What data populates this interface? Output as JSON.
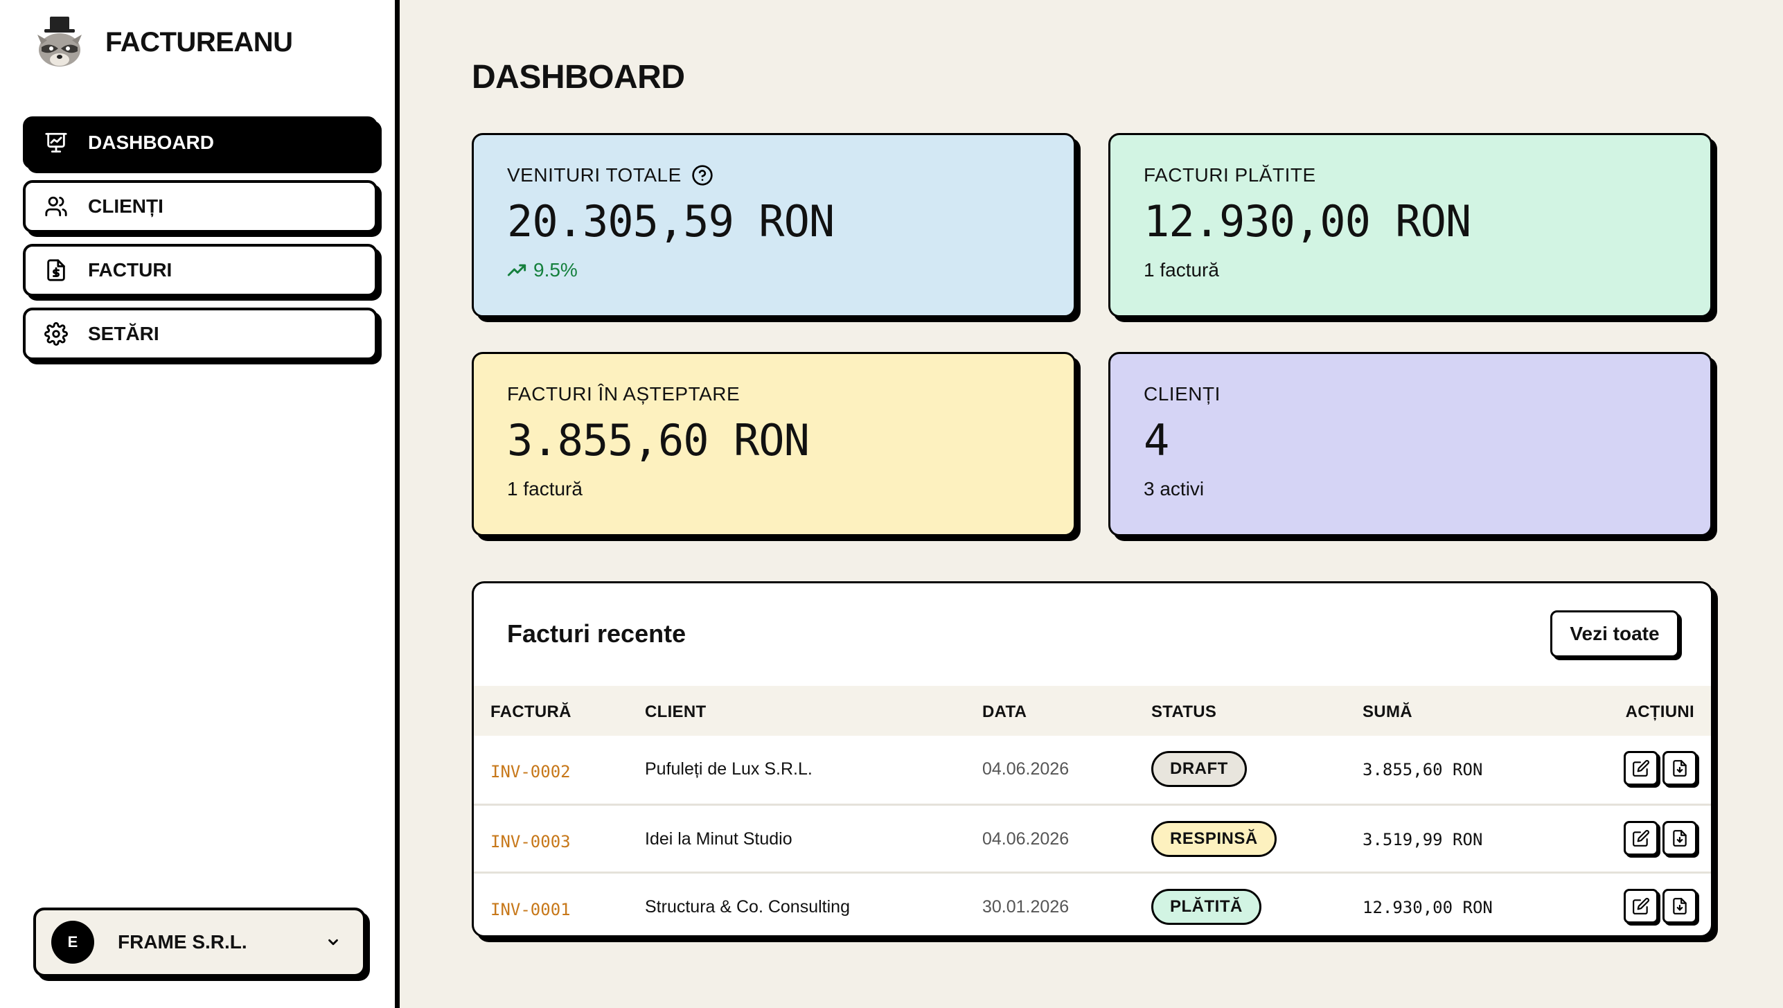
{
  "brand": {
    "name": "FACTUREANU",
    "logo_icon": "raccoon-top-hat-logo"
  },
  "sidebar": {
    "items": [
      {
        "label": "DASHBOARD",
        "icon": "presentation-chart-icon",
        "active": true
      },
      {
        "label": "CLIENȚI",
        "icon": "users-icon",
        "active": false
      },
      {
        "label": "FACTURI",
        "icon": "invoice-dollar-icon",
        "active": false
      },
      {
        "label": "SETĂRI",
        "icon": "gear-icon",
        "active": false
      }
    ]
  },
  "company": {
    "initial": "E",
    "name": "FRAME S.R.L."
  },
  "page": {
    "title": "DASHBOARD"
  },
  "stats": [
    {
      "label": "VENITURI TOTALE",
      "value": "20.305,59 RON",
      "sub": "9.5%",
      "color": "#d3e8f4",
      "has_help": true,
      "trend": "up"
    },
    {
      "label": "FACTURI PLĂTITE",
      "value": "12.930,00 RON",
      "sub": "1 factură",
      "color": "#d2f4e3"
    },
    {
      "label": "FACTURI ÎN AȘTEPTARE",
      "value": "3.855,60 RON",
      "sub": "1 factură",
      "color": "#fdf1bf"
    },
    {
      "label": "CLIENȚI",
      "value": "4",
      "sub": "3 activi",
      "color": "#d5d4f5"
    }
  ],
  "recent": {
    "title": "Facturi recente",
    "view_all": "Vezi toate",
    "columns": [
      "FACTURĂ",
      "CLIENT",
      "DATA",
      "STATUS",
      "SUMĂ",
      "ACȚIUNI"
    ],
    "rows": [
      {
        "id": "INV-0002",
        "client": "Pufuleți de Lux S.R.L.",
        "date": "04.06.2026",
        "status": "DRAFT",
        "status_color": "#e8e5dd",
        "amount": "3.855,60 RON"
      },
      {
        "id": "INV-0003",
        "client": "Idei la Minut Studio",
        "date": "04.06.2026",
        "status": "RESPINSĂ",
        "status_color": "#fdf1bf",
        "amount": "3.519,99 RON"
      },
      {
        "id": "INV-0001",
        "client": "Structura & Co. Consulting",
        "date": "30.01.2026",
        "status": "PLĂTITĂ",
        "status_color": "#d2f4e3",
        "amount": "12.930,00 RON"
      }
    ]
  }
}
